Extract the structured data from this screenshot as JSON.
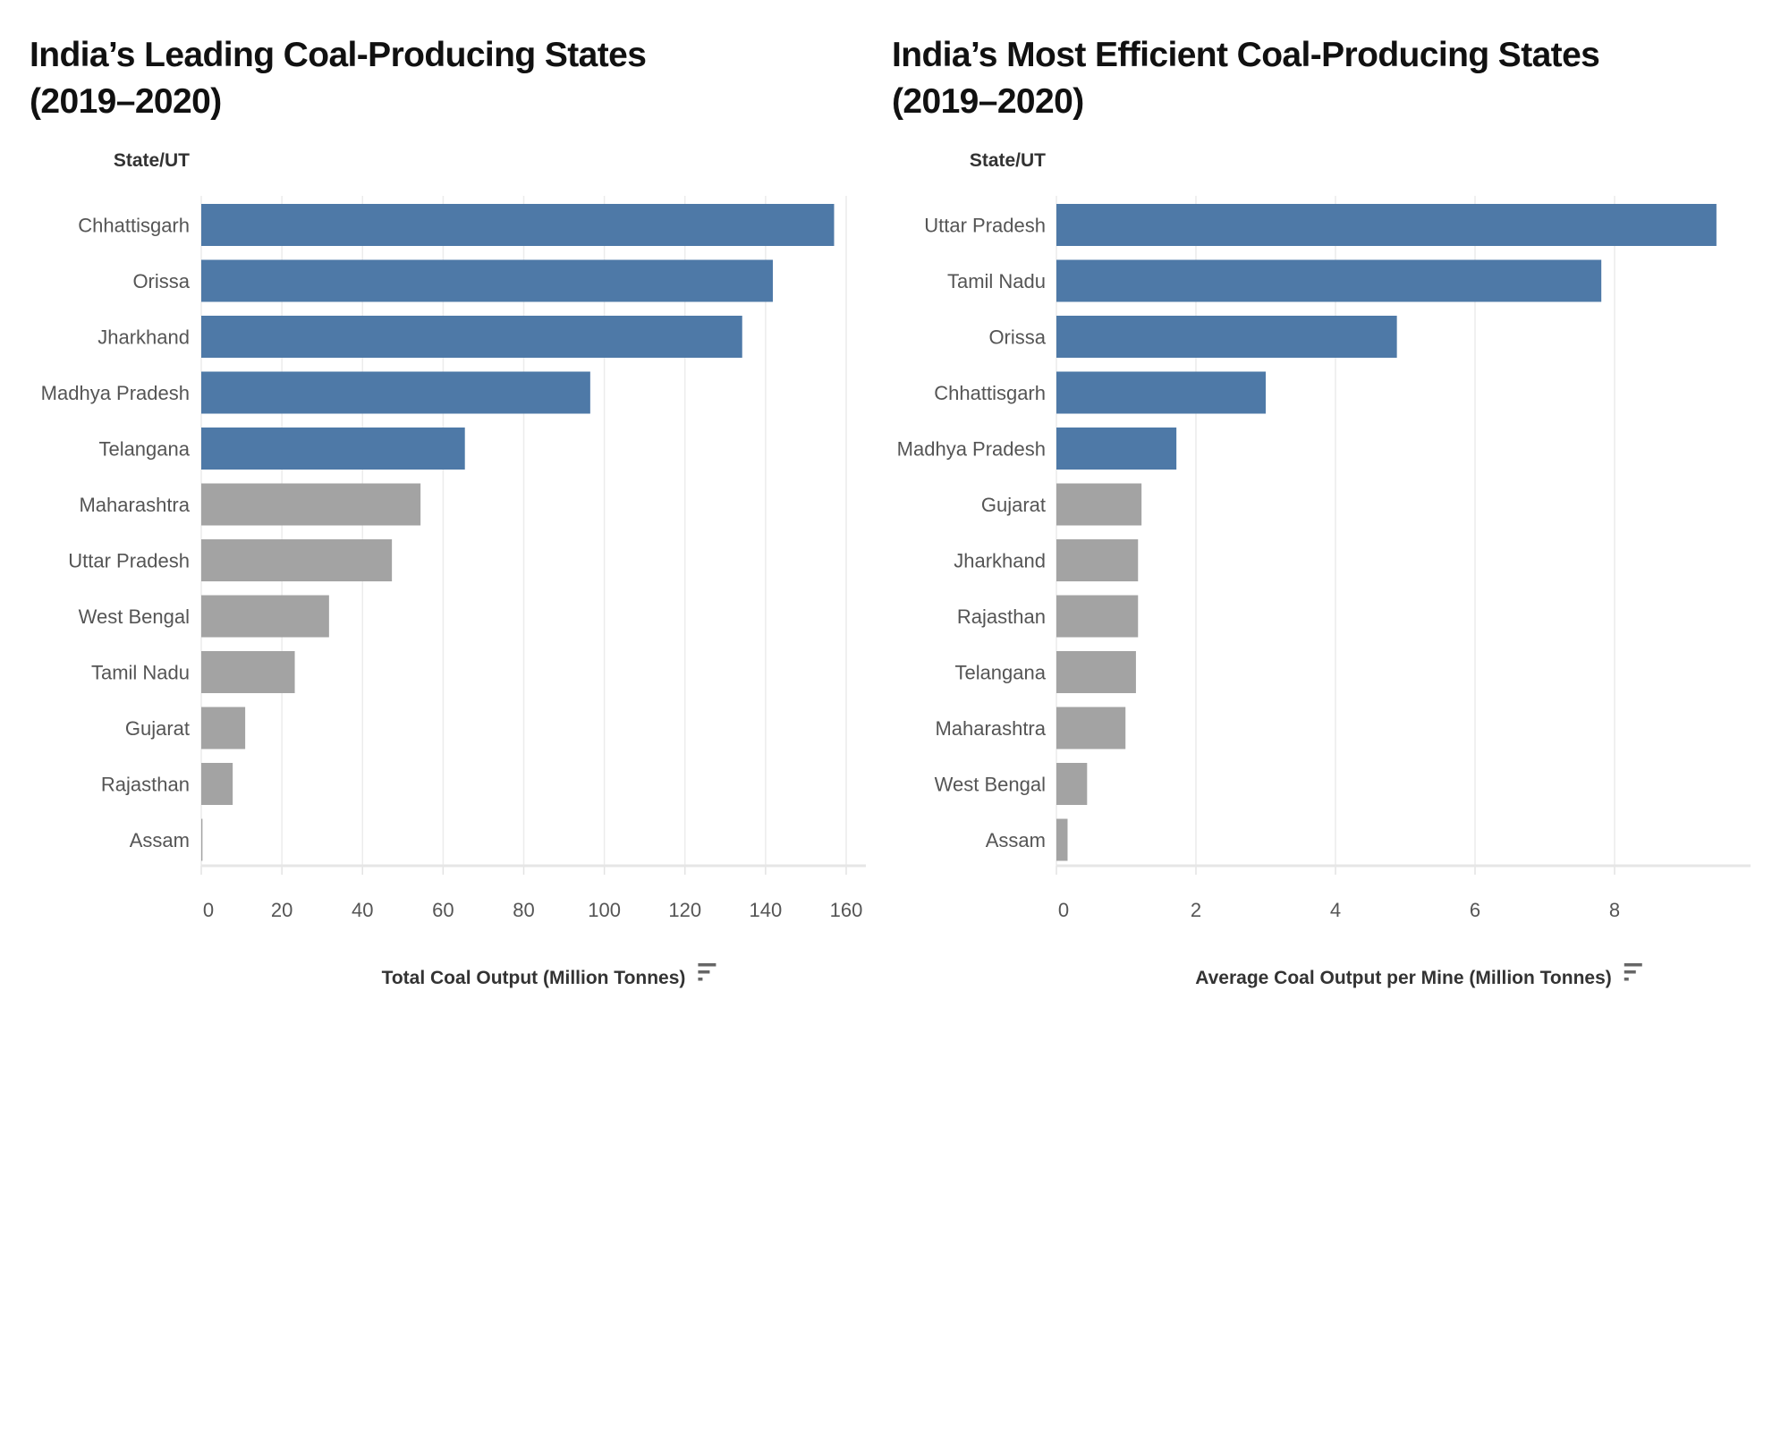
{
  "chart_data": [
    {
      "type": "bar",
      "orientation": "horizontal",
      "title": "India’s Leading Coal-Producing States (2019–2020)",
      "title_lines": [
        "India’s Leading Coal-Producing States",
        "(2019–2020)"
      ],
      "row_header": "State/UT",
      "xlabel": "Total Coal Output (Million Tonnes)",
      "xlim": [
        0,
        165
      ],
      "xticks": [
        0,
        20,
        40,
        60,
        80,
        100,
        120,
        140,
        160
      ],
      "grid": true,
      "sort_icon": "sort-descending-icon",
      "categories": [
        "Chhattisgarh",
        "Orissa",
        "Jharkhand",
        "Madhya Pradesh",
        "Telangana",
        "Maharashtra",
        "Uttar Pradesh",
        "West Bengal",
        "Tamil Nadu",
        "Gujarat",
        "Rajasthan",
        "Assam"
      ],
      "values": [
        157.0,
        141.8,
        134.2,
        96.5,
        65.4,
        54.4,
        47.3,
        31.7,
        23.2,
        10.9,
        7.8,
        0.3
      ],
      "highlighted": [
        true,
        true,
        true,
        true,
        true,
        false,
        false,
        false,
        false,
        false,
        false,
        false
      ],
      "colors": {
        "highlight": "#4e79a7",
        "other": "#a3a3a3"
      }
    },
    {
      "type": "bar",
      "orientation": "horizontal",
      "title": "India’s Most Efficient Coal-Producing States (2019–2020)",
      "title_lines": [
        "India’s Most Efficient Coal-Producing States",
        "(2019–2020)"
      ],
      "row_header": "State/UT",
      "xlabel": "Average Coal Output per Mine (Million Tonnes)",
      "xlim": [
        0,
        9.9
      ],
      "xticks": [
        0,
        2,
        4,
        6,
        8
      ],
      "grid": true,
      "sort_icon": "sort-descending-icon",
      "categories": [
        "Uttar Pradesh",
        "Tamil Nadu",
        "Orissa",
        "Chhattisgarh",
        "Madhya Pradesh",
        "Gujarat",
        "Jharkhand",
        "Rajasthan",
        "Telangana",
        "Maharashtra",
        "West Bengal",
        "Assam"
      ],
      "values": [
        9.46,
        7.81,
        4.88,
        3.0,
        1.72,
        1.22,
        1.17,
        1.17,
        1.14,
        0.99,
        0.44,
        0.16
      ],
      "highlighted": [
        true,
        true,
        true,
        true,
        true,
        false,
        false,
        false,
        false,
        false,
        false,
        false
      ],
      "colors": {
        "highlight": "#4e79a7",
        "other": "#a3a3a3"
      }
    }
  ]
}
